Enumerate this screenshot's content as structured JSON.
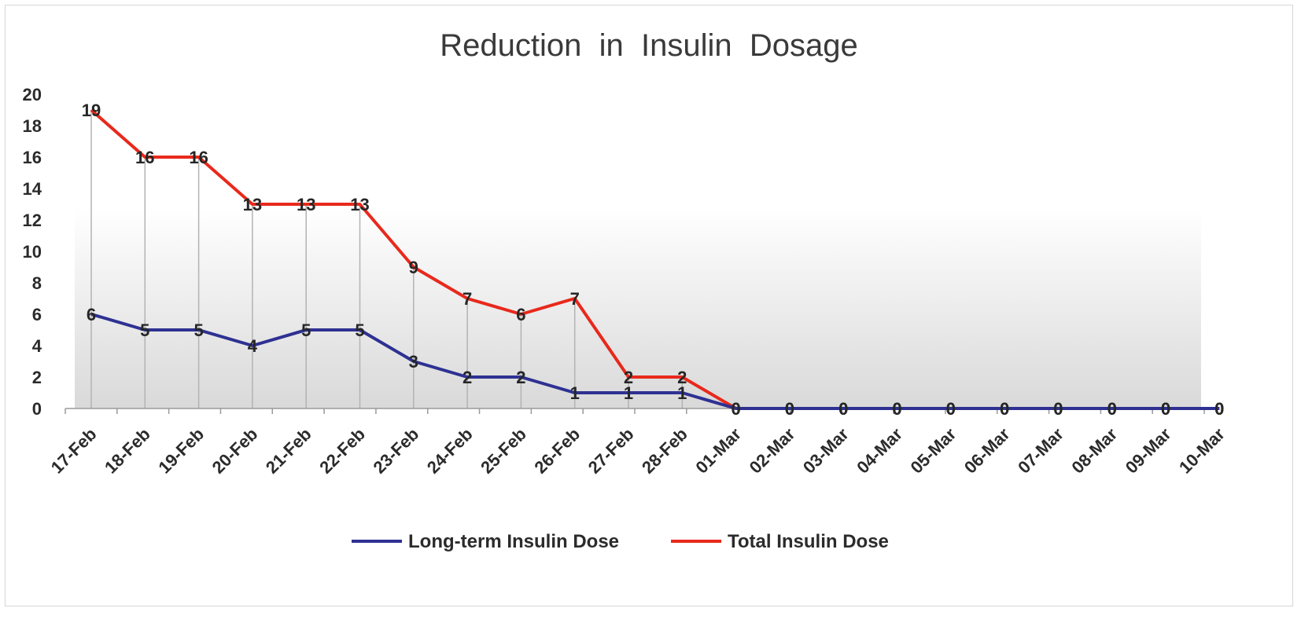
{
  "chart_data": {
    "type": "line",
    "title": "Reduction  in  Insulin  Dosage",
    "xlabel": "",
    "ylabel": "",
    "ylim": [
      0,
      20
    ],
    "yticks": [
      "0",
      "2",
      "4",
      "6",
      "8",
      "10",
      "12",
      "14",
      "16",
      "18",
      "20"
    ],
    "categories": [
      "17-Feb",
      "18-Feb",
      "19-Feb",
      "20-Feb",
      "21-Feb",
      "22-Feb",
      "23-Feb",
      "24-Feb",
      "25-Feb",
      "26-Feb",
      "27-Feb",
      "28-Feb",
      "01-Mar",
      "02-Mar",
      "03-Mar",
      "04-Mar",
      "05-Mar",
      "06-Mar",
      "07-Mar",
      "08-Mar",
      "09-Mar",
      "10-Mar"
    ],
    "series": [
      {
        "name": "Long-term Insulin Dose",
        "color": "#2e3192",
        "values": [
          6,
          5,
          5,
          4,
          5,
          5,
          3,
          2,
          2,
          1,
          1,
          1,
          0,
          0,
          0,
          0,
          0,
          0,
          0,
          0,
          0,
          0
        ]
      },
      {
        "name": "Total Insulin Dose",
        "color": "#e8291c",
        "values": [
          19,
          16,
          16,
          13,
          13,
          13,
          9,
          7,
          6,
          7,
          2,
          2,
          0,
          0,
          0,
          0,
          0,
          0,
          0,
          0,
          0,
          0
        ]
      }
    ],
    "grid": false,
    "drop_lines": true,
    "legend_position": "bottom"
  }
}
